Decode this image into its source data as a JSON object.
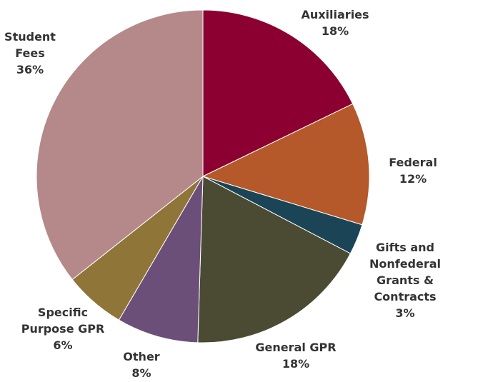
{
  "chart_data": {
    "type": "pie",
    "categories": [
      "Auxiliaries",
      "Federal",
      "Gifts and\nNonfederal\nGrants & Contracts",
      "General GPR",
      "Other",
      "Specific\nPurpose GPR",
      "Student\nFees"
    ],
    "values": [
      18,
      12,
      3,
      18,
      8,
      6,
      36
    ],
    "value_labels": [
      "18%",
      "12%",
      "3%",
      "18%",
      "8%",
      "6%",
      "36%"
    ],
    "colors": [
      "#8b0030",
      "#b5582a",
      "#1b4556",
      "#4a4b32",
      "#6b4f78",
      "#8f7538",
      "#b5888a"
    ]
  }
}
